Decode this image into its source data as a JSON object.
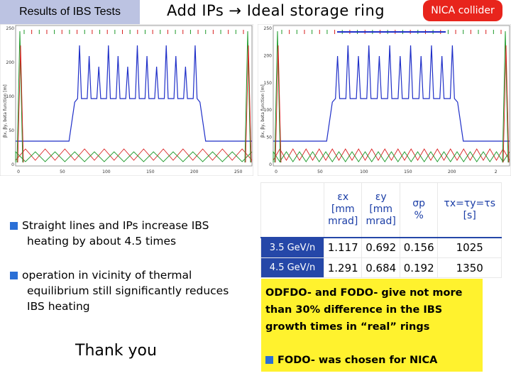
{
  "header": {
    "badge": "Results of IBS Tests",
    "title": "Add IPs → Ideal storage ring",
    "nica": "NICA collider"
  },
  "plot1": {
    "xticks": [
      "0",
      "50",
      "100",
      "150",
      "200",
      "250"
    ],
    "yticks": [
      "250",
      "200",
      "100",
      "50",
      "0"
    ],
    "ylabel": "βx, βy, beta function [m]"
  },
  "plot2": {
    "xticks": [
      "0",
      "50",
      "100",
      "150",
      "200",
      "2"
    ],
    "yticks": [
      "250",
      "200",
      "150",
      "100",
      "50",
      "0"
    ],
    "ylabel": "βx, βy, beta function [m]"
  },
  "bullets": [
    "Straight lines and IPs increase IBS heating by about 4.5 times",
    "operation in vicinity of thermal equilibrium still significantly reduces IBS heating"
  ],
  "thanks": "Thank you",
  "table": {
    "headers": [
      [
        "εx",
        "[mm",
        "mrad]"
      ],
      [
        "εy",
        "[mm",
        "mrad]"
      ],
      [
        "σp",
        "%"
      ],
      [
        "τx=τy=τs",
        "[s]"
      ]
    ],
    "rows": [
      {
        "label": "3.5 GeV/n",
        "values": [
          "1.117",
          "0.692",
          "0.156",
          "1025"
        ]
      },
      {
        "label": "4.5 GeV/n",
        "values": [
          "1.291",
          "0.684",
          "0.192",
          "1350"
        ]
      }
    ]
  },
  "yellowbox": {
    "text1": "ODFDO- and FODO- give not more than 30% difference in the IBS growth times in “real” rings",
    "text2": "FODO- was chosen for NICA"
  },
  "colors": {
    "accent_blue": "#2547a8",
    "red": "#e8241c",
    "yellow": "#fff22e",
    "badge": "#bcc3e2"
  }
}
